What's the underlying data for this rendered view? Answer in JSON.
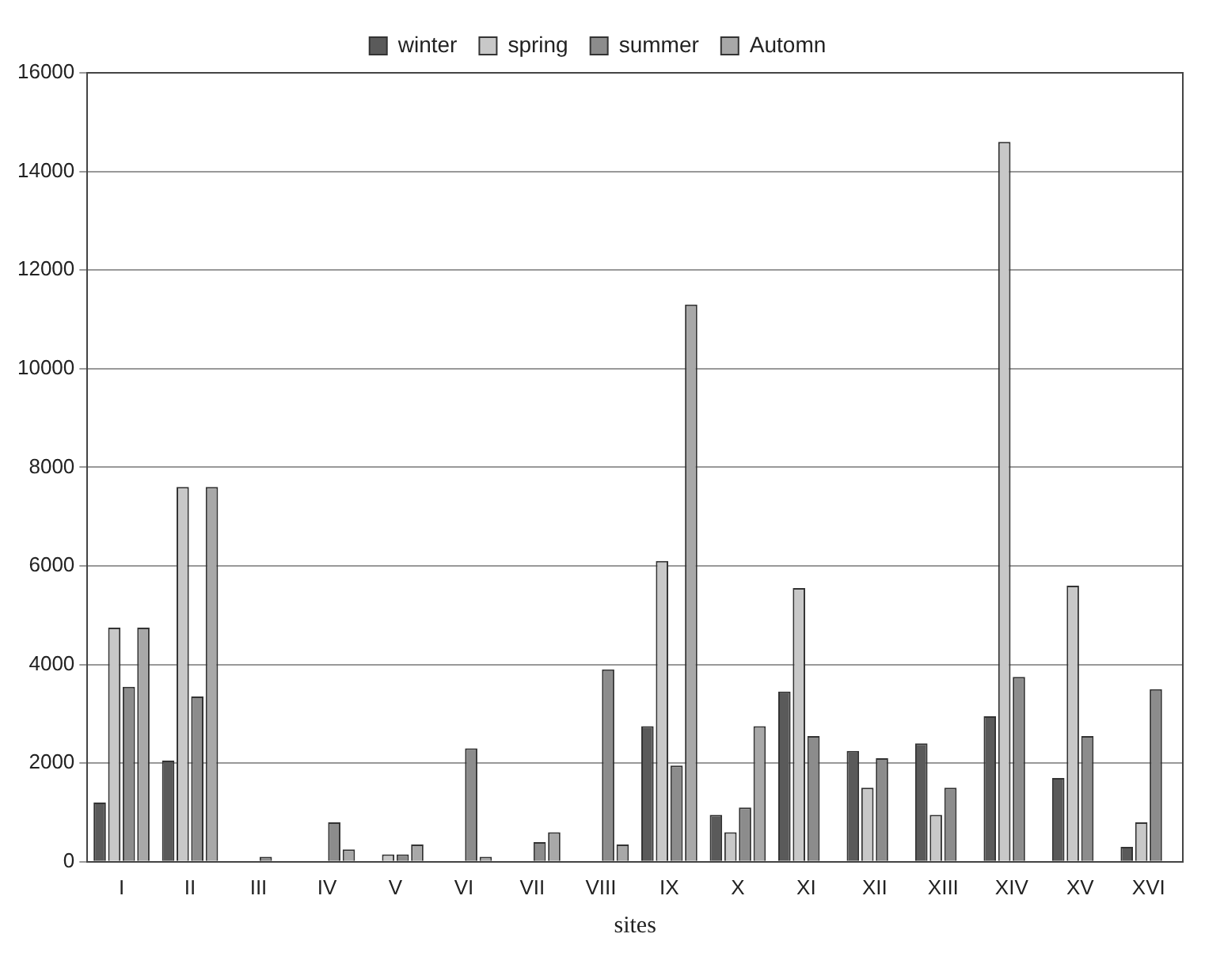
{
  "chart_data": {
    "type": "bar",
    "xlabel": "sites",
    "categories": [
      "I",
      "II",
      "III",
      "IV",
      "V",
      "VI",
      "VII",
      "VIII",
      "IX",
      "X",
      "XI",
      "XII",
      "XIII",
      "XIV",
      "XV",
      "XVI"
    ],
    "series": [
      {
        "name": "winter",
        "color": "#5a5a5a",
        "values": [
          1200,
          2050,
          0,
          0,
          0,
          0,
          0,
          0,
          2750,
          950,
          3450,
          2250,
          2400,
          2950,
          1700,
          300
        ]
      },
      {
        "name": "spring",
        "color": "#c8c8c8",
        "values": [
          4750,
          7600,
          0,
          0,
          150,
          0,
          0,
          0,
          6100,
          600,
          5550,
          1500,
          950,
          14600,
          5600,
          800
        ]
      },
      {
        "name": "summer",
        "color": "#8c8c8c",
        "values": [
          3550,
          3350,
          100,
          800,
          150,
          2300,
          400,
          3900,
          1950,
          1100,
          2550,
          2100,
          1500,
          3750,
          2550,
          3500
        ]
      },
      {
        "name": "Automn",
        "color": "#a8a8a8",
        "values": [
          4750,
          7600,
          0,
          250,
          350,
          100,
          600,
          350,
          11300,
          2750,
          0,
          0,
          0,
          0,
          0,
          0
        ]
      }
    ],
    "ylim": [
      0,
      16000
    ],
    "yticks": [
      0,
      2000,
      4000,
      6000,
      8000,
      10000,
      12000,
      14000,
      16000
    ],
    "grid": "y",
    "legend": "top"
  }
}
